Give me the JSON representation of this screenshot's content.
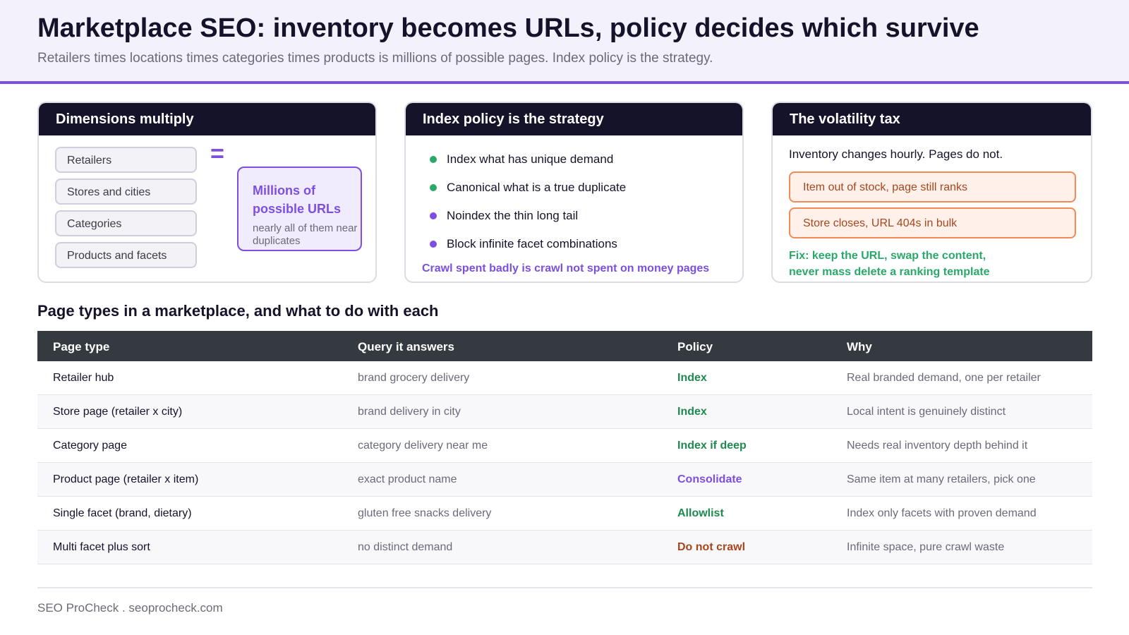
{
  "header": {
    "title": "Marketplace SEO: inventory becomes URLs, policy decides which survive",
    "subtitle": "Retailers times locations times categories times products is millions of possible pages. Index policy is the strategy."
  },
  "colors": {
    "accent_purple": "#7c4fe0",
    "green": "#2aa86a",
    "policy_green": "#1e8a4f",
    "orange": "#f08a57",
    "dark": "#15132a",
    "table_header": "#343a3f"
  },
  "cards": {
    "dimensions": {
      "title": "Dimensions multiply",
      "items": [
        "Retailers",
        "Stores and cities",
        "Categories",
        "Products and facets"
      ],
      "equals": "=",
      "result_main": "Millions of possible URLs",
      "result_sub": "nearly all of them near duplicates"
    },
    "policy": {
      "title": "Index policy is the strategy",
      "bullets": [
        {
          "text": "Index what has unique demand",
          "color": "green"
        },
        {
          "text": "Canonical what is a true duplicate",
          "color": "green"
        },
        {
          "text": "Noindex the thin long tail",
          "color": "purple"
        },
        {
          "text": "Block infinite facet combinations",
          "color": "purple"
        }
      ],
      "footer": "Crawl spent badly is crawl not spent on money pages"
    },
    "volatility": {
      "title": "The volatility tax",
      "intro": "Inventory changes hourly. Pages do not.",
      "warnings": [
        "Item out of stock, page still ranks",
        "Store closes, URL 404s in bulk"
      ],
      "fix_line1": "Fix: keep the URL, swap the content,",
      "fix_line2": "never mass delete a ranking template"
    }
  },
  "table": {
    "section_title": "Page types in a marketplace, and what to do with each",
    "headers": [
      "Page type",
      "Query it answers",
      "Policy",
      "Why"
    ],
    "rows": [
      {
        "page_type": "Retailer hub",
        "query": "brand grocery delivery",
        "policy": "Index",
        "policy_color": "#1e8a4f",
        "why": "Real branded demand, one per retailer"
      },
      {
        "page_type": "Store page (retailer x city)",
        "query": "brand delivery in city",
        "policy": "Index",
        "policy_color": "#1e8a4f",
        "why": "Local intent is genuinely distinct"
      },
      {
        "page_type": "Category page",
        "query": "category delivery near me",
        "policy": "Index if deep",
        "policy_color": "#1e8a4f",
        "why": "Needs real inventory depth behind it"
      },
      {
        "page_type": "Product page (retailer x item)",
        "query": "exact product name",
        "policy": "Consolidate",
        "policy_color": "#7c4fe0",
        "why": "Same item at many retailers, pick one"
      },
      {
        "page_type": "Single facet (brand, dietary)",
        "query": "gluten free snacks delivery",
        "policy": "Allowlist",
        "policy_color": "#1e8a4f",
        "why": "Index only facets with proven demand"
      },
      {
        "page_type": "Multi facet plus sort",
        "query": "no distinct demand",
        "policy": "Do not crawl",
        "policy_color": "#a8451c",
        "why": "Infinite space, pure crawl waste"
      }
    ]
  },
  "footer": {
    "text": "SEO ProCheck . seoprocheck.com"
  }
}
